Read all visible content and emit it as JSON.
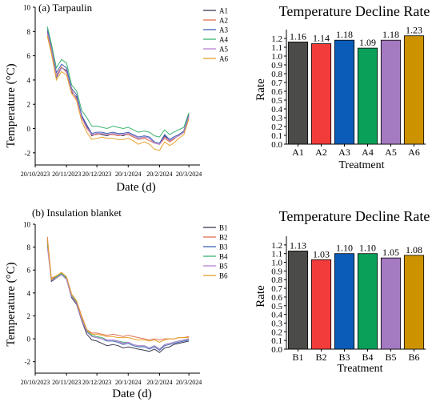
{
  "chart_data": [
    {
      "type": "line",
      "panel_label": "(a) Tarpaulin",
      "xlabel": "Date (d)",
      "ylabel": "Temperature (°C)",
      "x_tick_labels": [
        "20/10/2023",
        "20/11/2023",
        "20/12/2023",
        "20/1/2024",
        "20/2/2024",
        "20/3/2024"
      ],
      "x_ticks": [
        "2023-10-20",
        "2023-11-20",
        "2023-12-20",
        "2024-01-20",
        "2024-02-20",
        "2024-03-20"
      ],
      "xlim": [
        "2023-10-20",
        "2024-03-31"
      ],
      "ylim": [
        -3,
        10
      ],
      "y_ticks": [
        -2,
        0,
        2,
        4,
        6,
        8,
        10
      ],
      "legend_position": "top-right",
      "x": [
        "2023-11-01",
        "2023-11-05",
        "2023-11-10",
        "2023-11-15",
        "2023-11-20",
        "2023-11-25",
        "2023-11-30",
        "2023-12-05",
        "2023-12-10",
        "2023-12-15",
        "2023-12-20",
        "2023-12-25",
        "2023-12-30",
        "2024-01-05",
        "2024-01-10",
        "2024-01-15",
        "2024-01-20",
        "2024-01-25",
        "2024-01-30",
        "2024-02-05",
        "2024-02-10",
        "2024-02-15",
        "2024-02-20",
        "2024-02-25",
        "2024-03-01",
        "2024-03-05",
        "2024-03-10",
        "2024-03-15",
        "2024-03-20"
      ],
      "series": [
        {
          "name": "A1",
          "color": "#3a3a55",
          "values": [
            8.0,
            6.5,
            4.2,
            5.0,
            4.8,
            3.0,
            2.6,
            1.0,
            0.2,
            -0.6,
            -0.4,
            -0.5,
            -0.6,
            -0.4,
            -0.5,
            -0.6,
            -0.4,
            -0.6,
            -0.8,
            -0.7,
            -0.8,
            -1.2,
            -1.3,
            -0.6,
            -1.0,
            -0.8,
            -0.6,
            -0.3,
            1.0
          ]
        },
        {
          "name": "A2",
          "color": "#e07050",
          "values": [
            7.8,
            6.3,
            4.4,
            5.1,
            4.6,
            3.2,
            2.4,
            0.9,
            0.0,
            -0.5,
            -0.5,
            -0.4,
            -0.5,
            -0.5,
            -0.6,
            -0.5,
            -0.5,
            -0.7,
            -0.9,
            -0.8,
            -1.0,
            -1.2,
            -1.3,
            -0.8,
            -1.1,
            -0.9,
            -0.5,
            -0.2,
            1.1
          ]
        },
        {
          "name": "A3",
          "color": "#3d62b6",
          "values": [
            8.2,
            6.8,
            4.6,
            5.3,
            5.0,
            3.3,
            2.8,
            1.1,
            0.3,
            -0.4,
            -0.3,
            -0.3,
            -0.4,
            -0.3,
            -0.4,
            -0.4,
            -0.3,
            -0.5,
            -0.7,
            -0.6,
            -0.7,
            -1.1,
            -1.2,
            -0.5,
            -0.9,
            -0.7,
            -0.5,
            -0.2,
            1.2
          ]
        },
        {
          "name": "A4",
          "color": "#3cb371",
          "values": [
            8.4,
            7.0,
            5.0,
            5.7,
            5.4,
            3.6,
            3.1,
            1.5,
            0.9,
            0.2,
            0.2,
            0.1,
            0.0,
            0.2,
            0.1,
            0.0,
            0.1,
            -0.1,
            -0.3,
            -0.2,
            -0.3,
            -0.6,
            -0.7,
            -0.1,
            -0.5,
            -0.3,
            -0.1,
            0.1,
            1.3
          ]
        },
        {
          "name": "A5",
          "color": "#b882d0",
          "values": [
            7.9,
            6.6,
            4.3,
            5.0,
            4.7,
            3.1,
            2.5,
            0.9,
            0.1,
            -0.5,
            -0.4,
            -0.4,
            -0.5,
            -0.4,
            -0.5,
            -0.5,
            -0.4,
            -0.6,
            -0.8,
            -0.7,
            -0.8,
            -1.2,
            -1.3,
            -0.7,
            -1.0,
            -0.8,
            -0.6,
            -0.3,
            1.0
          ]
        },
        {
          "name": "A6",
          "color": "#e8a22a",
          "values": [
            7.6,
            6.2,
            4.0,
            4.7,
            4.4,
            2.9,
            2.3,
            0.6,
            -0.3,
            -0.9,
            -0.8,
            -0.7,
            -0.8,
            -0.8,
            -0.9,
            -0.9,
            -0.8,
            -1.0,
            -1.3,
            -1.1,
            -1.3,
            -1.7,
            -1.8,
            -1.1,
            -1.4,
            -1.2,
            -0.8,
            -0.5,
            0.8
          ]
        }
      ]
    },
    {
      "type": "bar",
      "title": "Temperature Decline Rate",
      "xlabel": "Treatment",
      "ylabel": "Rate",
      "categories": [
        "A1",
        "A2",
        "A3",
        "A4",
        "A5",
        "A6"
      ],
      "values": [
        1.16,
        1.14,
        1.18,
        1.09,
        1.18,
        1.23
      ],
      "data_labels": [
        "1.16",
        "1.14",
        "1.18",
        "1.09",
        "1.18",
        "1.23"
      ],
      "colors": [
        "#4b4b49",
        "#f23b3b",
        "#0a5cb8",
        "#0aa05a",
        "#a47ac0",
        "#cc9200"
      ],
      "ylim": [
        0,
        1.3
      ],
      "y_ticks": [
        "0.0",
        "0.1",
        "0.2",
        "0.3",
        "0.4",
        "0.5",
        "0.6",
        "0.7",
        "0.8",
        "0.9",
        "1.0",
        "1.1",
        "1.2"
      ]
    },
    {
      "type": "line",
      "panel_label": "(b) Insulation blanket",
      "xlabel": "Date (d)",
      "ylabel": "Temperature (°C)",
      "x_tick_labels": [
        "20/10/2023",
        "20/11/2023",
        "20/12/2023",
        "20/1/2024",
        "20/2/2024",
        "20/3/2024"
      ],
      "x_ticks": [
        "2023-10-20",
        "2023-11-20",
        "2023-12-20",
        "2024-01-20",
        "2024-02-20",
        "2024-03-20"
      ],
      "xlim": [
        "2023-10-20",
        "2024-03-31"
      ],
      "ylim": [
        -3,
        10
      ],
      "y_ticks": [
        -2,
        0,
        2,
        4,
        6,
        8,
        10
      ],
      "legend_position": "top-right",
      "x": [
        "2023-11-01",
        "2023-11-05",
        "2023-11-10",
        "2023-11-15",
        "2023-11-20",
        "2023-11-25",
        "2023-11-30",
        "2023-12-05",
        "2023-12-10",
        "2023-12-15",
        "2023-12-20",
        "2023-12-25",
        "2023-12-30",
        "2024-01-05",
        "2024-01-10",
        "2024-01-15",
        "2024-01-20",
        "2024-01-25",
        "2024-01-30",
        "2024-02-05",
        "2024-02-10",
        "2024-02-15",
        "2024-02-20",
        "2024-02-25",
        "2024-03-01",
        "2024-03-05",
        "2024-03-10",
        "2024-03-15",
        "2024-03-20"
      ],
      "series": [
        {
          "name": "B1",
          "color": "#3a3a55",
          "values": [
            8.6,
            5.0,
            5.3,
            5.6,
            5.2,
            3.6,
            3.0,
            1.6,
            0.4,
            -0.1,
            -0.2,
            -0.4,
            -0.6,
            -0.5,
            -0.6,
            -0.8,
            -0.7,
            -0.8,
            -0.9,
            -1.0,
            -1.1,
            -0.9,
            -1.2,
            -0.8,
            -0.7,
            -0.5,
            -0.4,
            -0.3,
            -0.2
          ]
        },
        {
          "name": "B2",
          "color": "#e07050",
          "values": [
            8.9,
            5.3,
            5.5,
            5.8,
            5.4,
            3.9,
            3.3,
            2.0,
            0.8,
            0.5,
            0.5,
            0.4,
            0.3,
            0.4,
            0.3,
            0.2,
            0.3,
            0.2,
            0.1,
            0.0,
            -0.1,
            0.0,
            -0.1,
            0.0,
            0.0,
            0.0,
            0.1,
            0.1,
            0.2
          ]
        },
        {
          "name": "B3",
          "color": "#3d62b6",
          "values": [
            8.4,
            5.1,
            5.4,
            5.6,
            5.2,
            3.7,
            3.1,
            1.7,
            0.6,
            0.2,
            0.1,
            0.0,
            -0.2,
            -0.2,
            -0.3,
            -0.5,
            -0.4,
            -0.6,
            -0.7,
            -0.7,
            -0.9,
            -0.7,
            -1.0,
            -0.6,
            -0.5,
            -0.4,
            -0.3,
            -0.2,
            -0.1
          ]
        },
        {
          "name": "B4",
          "color": "#3cb371",
          "values": [
            8.2,
            5.2,
            5.4,
            5.7,
            5.3,
            3.8,
            3.2,
            1.8,
            0.7,
            0.3,
            0.2,
            0.1,
            -0.1,
            -0.1,
            -0.2,
            -0.3,
            -0.3,
            -0.5,
            -0.6,
            -0.6,
            -0.8,
            -0.6,
            -0.9,
            -0.5,
            -0.4,
            -0.3,
            -0.2,
            -0.1,
            0.0
          ]
        },
        {
          "name": "B5",
          "color": "#b882d0",
          "values": [
            8.0,
            5.1,
            5.3,
            5.6,
            5.2,
            3.7,
            3.1,
            1.7,
            0.6,
            0.2,
            0.1,
            0.0,
            -0.1,
            -0.1,
            -0.2,
            -0.4,
            -0.3,
            -0.5,
            -0.6,
            -0.6,
            -0.8,
            -0.6,
            -0.9,
            -0.5,
            -0.4,
            -0.3,
            -0.2,
            -0.1,
            0.0
          ]
        },
        {
          "name": "B6",
          "color": "#e8a22a",
          "values": [
            8.7,
            5.2,
            5.5,
            5.8,
            5.4,
            3.9,
            3.3,
            1.9,
            0.8,
            0.4,
            0.4,
            0.3,
            0.2,
            0.2,
            0.1,
            0.1,
            0.1,
            0.0,
            -0.1,
            -0.1,
            -0.2,
            -0.1,
            -0.3,
            -0.1,
            0.0,
            0.0,
            0.1,
            0.1,
            0.1
          ]
        }
      ]
    },
    {
      "type": "bar",
      "title": "Temperature Decline Rate",
      "xlabel": "Treatment",
      "ylabel": "Rate",
      "categories": [
        "B1",
        "B2",
        "B3",
        "B4",
        "B5",
        "B6"
      ],
      "values": [
        1.13,
        1.03,
        1.1,
        1.1,
        1.05,
        1.08
      ],
      "data_labels": [
        "1.13",
        "1.03",
        "1.10",
        "1.10",
        "1.05",
        "1.08"
      ],
      "colors": [
        "#4b4b49",
        "#f23b3b",
        "#0a5cb8",
        "#0aa05a",
        "#a47ac0",
        "#cc9200"
      ],
      "ylim": [
        0,
        1.3
      ],
      "y_ticks": [
        "0.0",
        "0.1",
        "0.2",
        "0.3",
        "0.4",
        "0.5",
        "0.6",
        "0.7",
        "0.8",
        "0.9",
        "1.0",
        "1.1",
        "1.2"
      ]
    }
  ]
}
